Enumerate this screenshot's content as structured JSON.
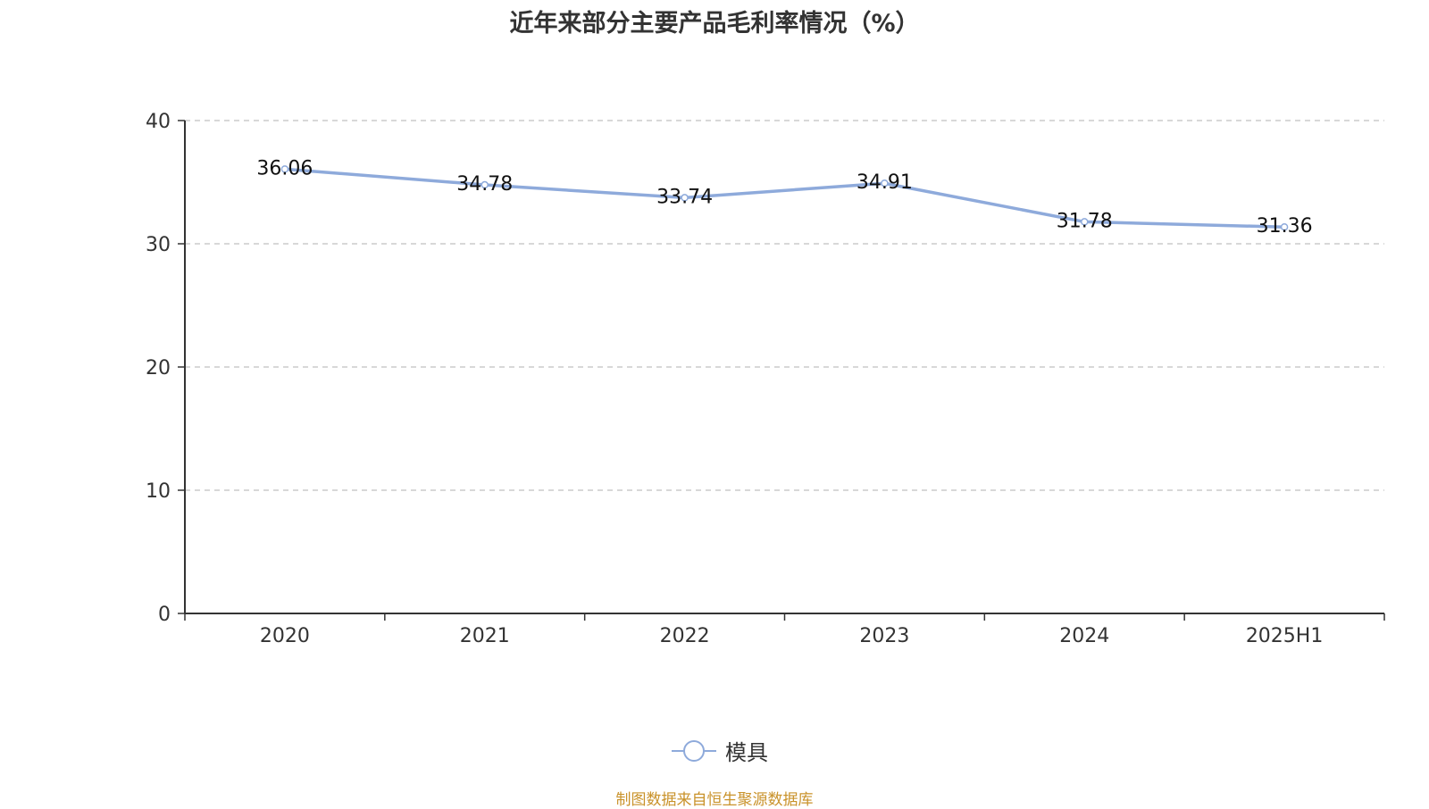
{
  "title": "近年来部分主要产品毛利率情况（%）",
  "source": "制图数据来自恒生聚源数据库",
  "colors": {
    "series": "#8eaadb",
    "axis": "#333333",
    "grid": "#cccccc",
    "source": "#c9922a"
  },
  "chart_data": {
    "type": "line",
    "title": "近年来部分主要产品毛利率情况（%）",
    "categories": [
      "2020",
      "2021",
      "2022",
      "2023",
      "2024",
      "2025H1"
    ],
    "series": [
      {
        "name": "模具",
        "values": [
          36.06,
          34.78,
          33.74,
          34.91,
          31.78,
          31.36
        ],
        "labels": [
          "36.06",
          "34.78",
          "33.74",
          "34.91",
          "31.78",
          "31.36"
        ]
      }
    ],
    "ylim": [
      0,
      40
    ],
    "yticks": [
      "0",
      "10",
      "20",
      "30",
      "40"
    ],
    "grid": true,
    "legend": "bottom-center"
  }
}
